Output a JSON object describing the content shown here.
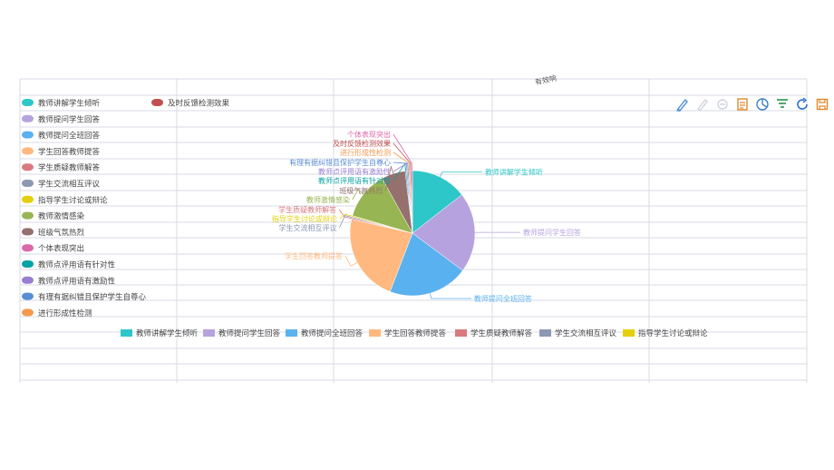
{
  "corner_text": "有效响",
  "toolbox": [
    {
      "name": "mark-icon",
      "color": "#4a8fd0"
    },
    {
      "name": "mark-undo-icon",
      "color": "#cfd3dc"
    },
    {
      "name": "mark-clear-icon",
      "color": "#cfd3dc"
    },
    {
      "name": "data-view-icon",
      "color": "#e0882a"
    },
    {
      "name": "pie-chart-icon",
      "color": "#3f7fc8"
    },
    {
      "name": "filter-icon",
      "color": "#35a05a"
    },
    {
      "name": "refresh-icon",
      "color": "#2a6fd1"
    },
    {
      "name": "save-image-icon",
      "color": "#e0882a"
    }
  ],
  "chart_data": {
    "type": "pie",
    "title": "",
    "left_legend": [
      {
        "label": "教师讲解学生倾听",
        "color": "#2ec7c9"
      },
      {
        "label": "教师提问学生回答",
        "color": "#b6a2de"
      },
      {
        "label": "教师提问全班回答",
        "color": "#5ab1ef"
      },
      {
        "label": "学生回答教师提答",
        "color": "#ffb980"
      },
      {
        "label": "学生质疑教师解答",
        "color": "#d87a80"
      },
      {
        "label": "学生交流相互评议",
        "color": "#8d98b3"
      },
      {
        "label": "指导学生讨论或辩论",
        "color": "#e5cf0d"
      },
      {
        "label": "教师激情感染",
        "color": "#97b552"
      },
      {
        "label": "班级气氛热烈",
        "color": "#95706d"
      },
      {
        "label": "个体表现突出",
        "color": "#dc69aa"
      },
      {
        "label": "教师点评用语有针对性",
        "color": "#07a2a4"
      },
      {
        "label": "教师点评用语有激励性",
        "color": "#9a7fd1"
      },
      {
        "label": "有理有据纠错且保护学生自尊心",
        "color": "#588dd5"
      },
      {
        "label": "进行形成性检测",
        "color": "#f5994e"
      }
    ],
    "right_legend": [
      {
        "label": "及时反馈检测效果",
        "color": "#c05050"
      }
    ],
    "bottom_legend": [
      {
        "label": "教师讲解学生倾听",
        "color": "#2ec7c9"
      },
      {
        "label": "教师提问学生回答",
        "color": "#b6a2de"
      },
      {
        "label": "教师提问全班回答",
        "color": "#5ab1ef"
      },
      {
        "label": "学生回答教师提答",
        "color": "#ffb980"
      },
      {
        "label": "学生质疑教师解答",
        "color": "#d87a80"
      },
      {
        "label": "学生交流相互评议",
        "color": "#8d98b3"
      },
      {
        "label": "指导学生讨论或辩论",
        "color": "#e5cf0d"
      }
    ],
    "slices": [
      {
        "label": "教师讲解学生倾听",
        "value": 14,
        "color": "#2ec7c9"
      },
      {
        "label": "教师提问学生回答",
        "value": 20,
        "color": "#b6a2de"
      },
      {
        "label": "教师提问全班回答",
        "value": 20,
        "color": "#5ab1ef"
      },
      {
        "label": "学生回答教师提答",
        "value": 22,
        "color": "#ffb980"
      },
      {
        "label": "学生质疑教师解答",
        "value": 0.3,
        "color": "#d87a80"
      },
      {
        "label": "学生交流相互评议",
        "value": 0.3,
        "color": "#8d98b3"
      },
      {
        "label": "指导学生讨论或辩论",
        "value": 0.3,
        "color": "#e5cf0d"
      },
      {
        "label": "教师激情感染",
        "value": 12,
        "color": "#97b552"
      },
      {
        "label": "班级气氛热烈",
        "value": 6,
        "color": "#95706d"
      },
      {
        "label": "教师点评用语有针对性",
        "value": 0.3,
        "color": "#07a2a4"
      },
      {
        "label": "教师点评用语有激励性",
        "value": 0.3,
        "color": "#9a7fd1"
      },
      {
        "label": "有理有据纠错且保护学生自尊心",
        "value": 0.3,
        "color": "#588dd5"
      },
      {
        "label": "进行形成性检测",
        "value": 0.3,
        "color": "#f5994e"
      },
      {
        "label": "及时反馈检测效果",
        "value": 0.3,
        "color": "#c05050"
      },
      {
        "label": "个体表现突出",
        "value": 0.3,
        "color": "#dc69aa"
      }
    ]
  }
}
